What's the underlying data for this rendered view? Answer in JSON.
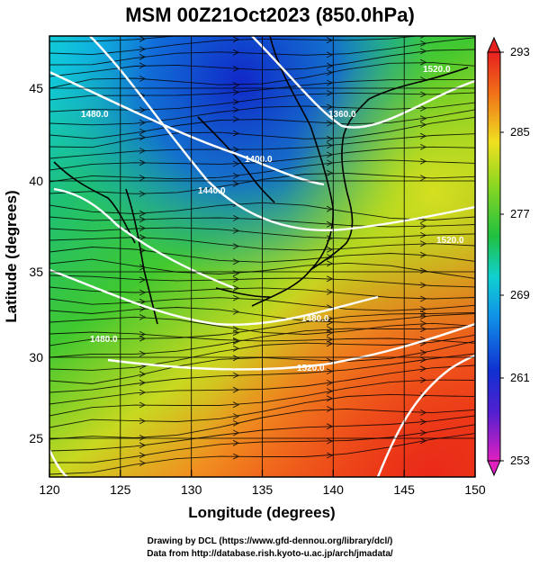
{
  "title": "MSM 00Z21Oct2023 (850.0hPa)",
  "xlabel": "Longitude (degrees)",
  "ylabel": "Latitude  (degrees)",
  "x_ticks": [
    "120",
    "125",
    "130",
    "135",
    "140",
    "145",
    "150"
  ],
  "y_ticks": [
    "25",
    "30",
    "35",
    "40",
    "45"
  ],
  "colorbar_ticks": [
    "293",
    "285",
    "277",
    "269",
    "261",
    "253"
  ],
  "credits": {
    "line1": "Drawing by DCL (https://www.gfd-dennou.org/library/dcl/)",
    "line2": "Data from http://database.rish.kyoto-u.ac.jp/arch/jmadata/"
  },
  "contour_labels": [
    "1520.0",
    "1360.0",
    "1400.0",
    "1440.0",
    "1480.0",
    "1520.0",
    "1480.0",
    "1520.0",
    "1480.0",
    "1520.0"
  ],
  "chart_data": {
    "type": "heatmap",
    "variable": "temperature (K) with geopotential height contours and wind streamlines",
    "xlim": [
      120,
      150
    ],
    "ylim": [
      22.5,
      47.5
    ],
    "color_range": [
      253,
      293
    ],
    "colors": {
      "cold": "#1030d0",
      "cool": "#10c8e8",
      "mid": "#20c040",
      "warm": "#e8e020",
      "hot": "#f02818",
      "contour": "#ffffff",
      "coast": "#000000"
    }
  }
}
